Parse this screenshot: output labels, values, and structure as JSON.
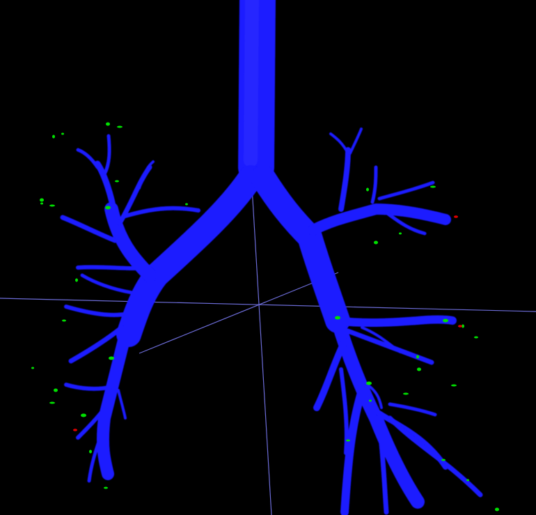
{
  "colors": {
    "background": "#000000",
    "airway": "#1a1aff",
    "airway_highlight": "#4444ff",
    "axis": "#8080ff",
    "marker_green": "#00e000",
    "marker_red": "#e00000"
  },
  "scene": {
    "subject": "airway-tree-3d-render",
    "axes": [
      "horizontal-axis",
      "vertical-axis",
      "depth-axis"
    ]
  }
}
